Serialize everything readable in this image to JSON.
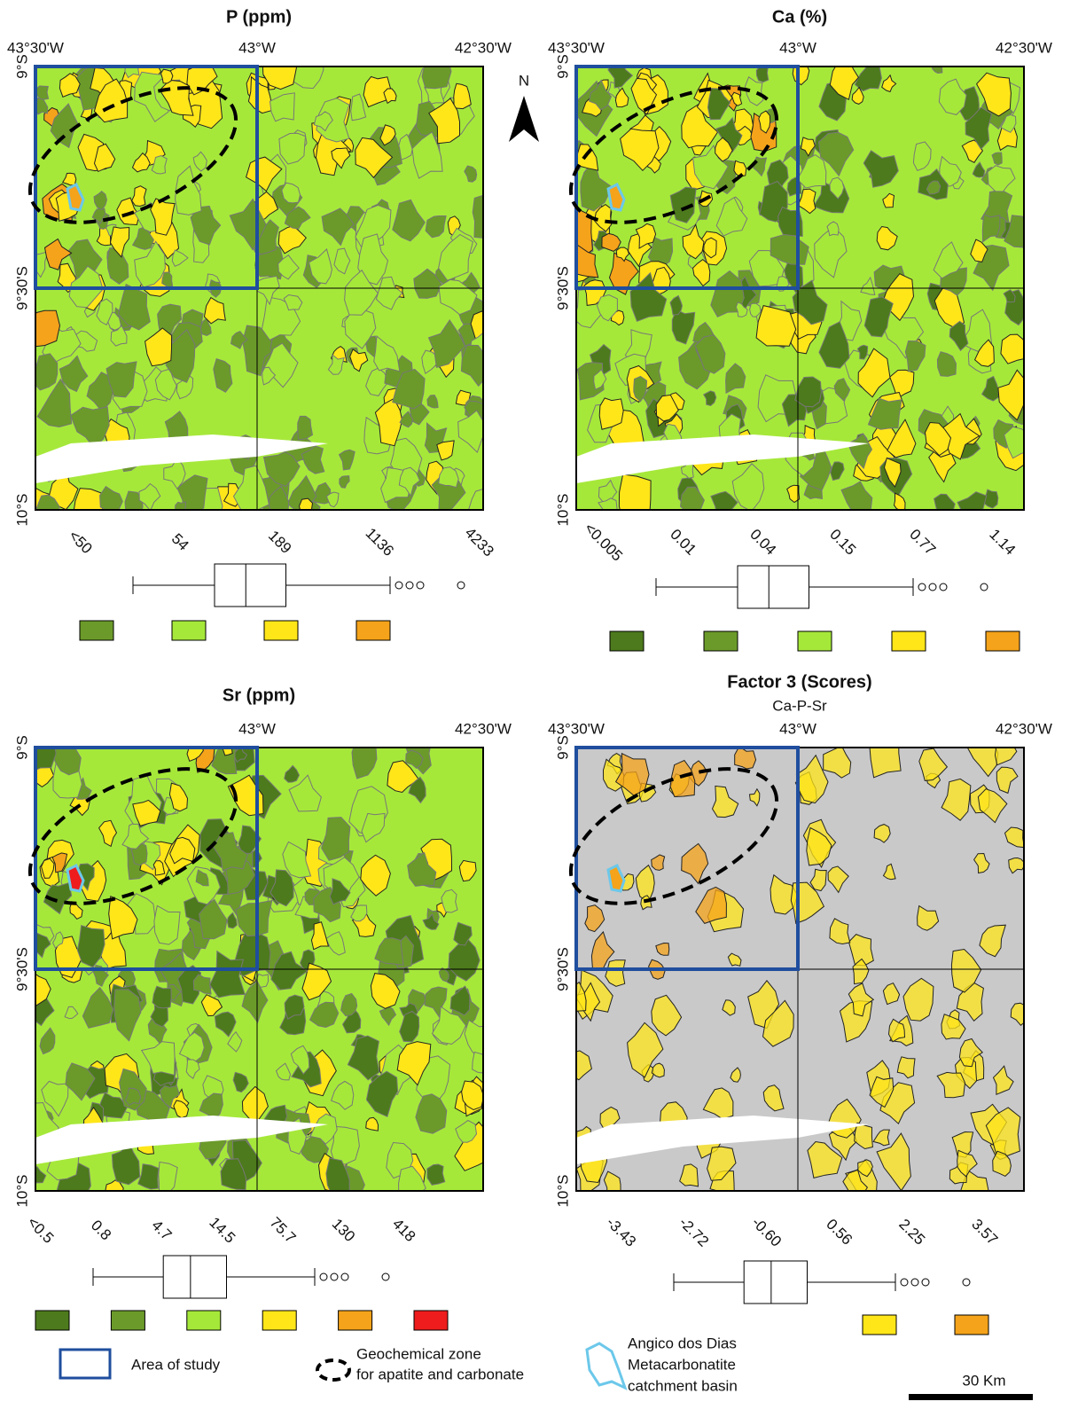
{
  "panels": [
    {
      "title": "P (ppm)",
      "lon_labels": [
        "43°30'W",
        "43°W",
        "42°30'W"
      ],
      "lat_labels": [
        "9°S",
        "9°30'S",
        "10°S"
      ],
      "breaks": [
        "<50",
        "54",
        "189",
        "1136",
        "4233"
      ],
      "classes": [
        "#6b9a2a",
        "#a6e83a",
        "#ffe619",
        "#f5a31a"
      ]
    },
    {
      "title": "Ca (%)",
      "lon_labels": [
        "43°30'W",
        "43°W",
        "42°30'W"
      ],
      "lat_labels": [
        "9°S",
        "9°30'S",
        "10°S"
      ],
      "breaks": [
        "<0.005",
        "0.01",
        "0.04",
        "0.15",
        "0.77",
        "1.14"
      ],
      "classes": [
        "#4d7a1c",
        "#6b9a2a",
        "#a6e83a",
        "#ffe619",
        "#f5a31a"
      ]
    },
    {
      "title": "Sr (ppm)",
      "lon_labels": [
        "43°W",
        "42°30'W"
      ],
      "lat_labels": [
        "9°S",
        "9°30'S",
        "10°S"
      ],
      "breaks": [
        "<0.5",
        "0.8",
        "4.7",
        "14.5",
        "75.7",
        "130",
        "418"
      ],
      "classes": [
        "#4d7a1c",
        "#6b9a2a",
        "#a6e83a",
        "#ffe619",
        "#f5a31a",
        "#ee1c1c"
      ]
    },
    {
      "title": "Factor 3 (Scores)",
      "subtitle": "Ca-P-Sr",
      "lon_labels": [
        "43°30'W",
        "43°W",
        "42°30'W"
      ],
      "lat_labels": [
        "9°S",
        "9°30'S",
        "10°S"
      ],
      "breaks": [
        "-3.43",
        "-2.72",
        "-0.60",
        "0.56",
        "2.25",
        "3.57"
      ],
      "classes": [
        "#ffe619",
        "#f5a31a"
      ]
    }
  ],
  "north": "N",
  "legend": {
    "area": "Area of study",
    "zone": [
      "Geochemical zone",
      "for apatite and carbonate"
    ],
    "basin": [
      "Angico dos Dias",
      "Metacarbonatite",
      "catchment basin"
    ]
  },
  "scale": "30 Km"
}
